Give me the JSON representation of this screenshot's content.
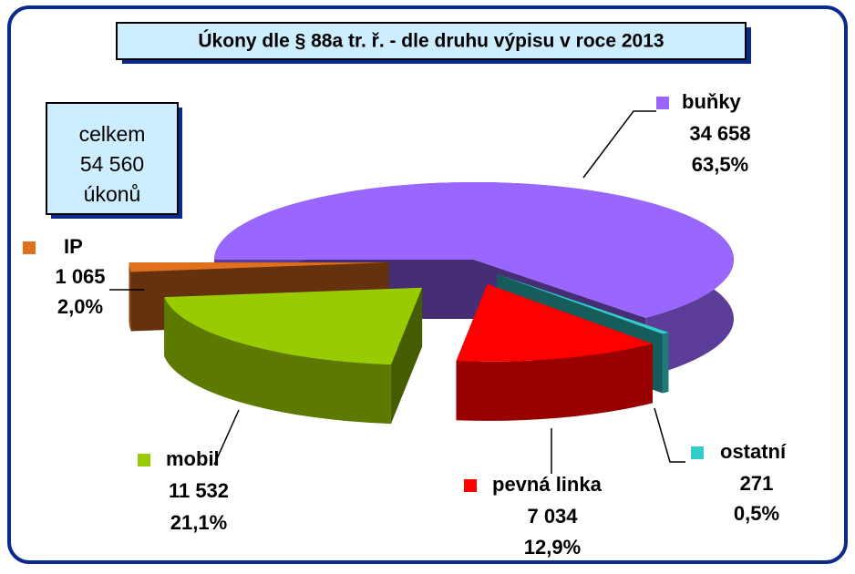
{
  "chart_data": {
    "type": "pie",
    "title": "Úkony dle § 88a tr. ř. - dle druhu výpisu v roce 2013",
    "total": {
      "caption": "celkem",
      "value": 54560,
      "label": "54 560",
      "unit": "úkonů"
    },
    "categories": [
      "buňky",
      "ostatní",
      "pevná linka",
      "mobil",
      "IP"
    ],
    "values": [
      34658,
      271,
      7034,
      11532,
      1065
    ],
    "value_labels": [
      "34 658",
      "271",
      "7 034",
      "11 532",
      "1 065"
    ],
    "percents": [
      63.5,
      0.5,
      12.9,
      21.1,
      2.0
    ],
    "percent_labels": [
      "63,5%",
      "0,5%",
      "12,9%",
      "21,1%",
      "2,0%"
    ],
    "colors": [
      "#9966ff",
      "#33cccc",
      "#ff0000",
      "#99cc00",
      "#e0701c"
    ],
    "start_angle": 180
  }
}
